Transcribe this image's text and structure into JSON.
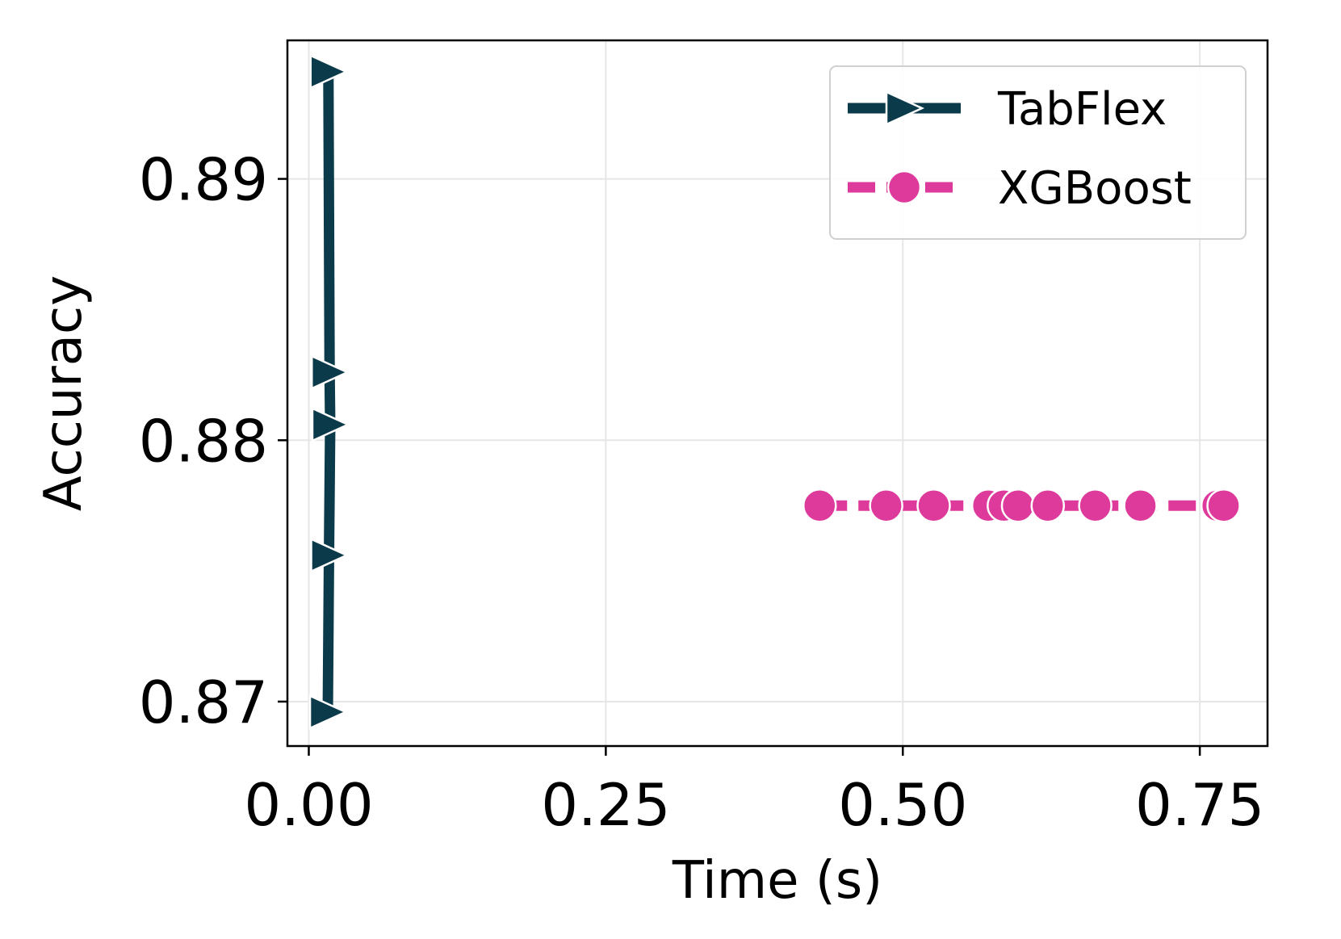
{
  "chart_data": {
    "type": "line",
    "xlabel": "Time (s)",
    "ylabel": "Accuracy",
    "xlim": [
      -0.018,
      0.807
    ],
    "ylim": [
      0.8683,
      0.8953
    ],
    "xticks": [
      0.0,
      0.25,
      0.5,
      0.75
    ],
    "xtick_labels": [
      "0.00",
      "0.25",
      "0.50",
      "0.75"
    ],
    "yticks": [
      0.87,
      0.88,
      0.89
    ],
    "ytick_labels": [
      "0.87",
      "0.88",
      "0.89"
    ],
    "grid": true,
    "legend_position": "top-right",
    "series": [
      {
        "name": "TabFlex",
        "color": "#0b3a4a",
        "marker": "triangle-right",
        "linestyle": "solid",
        "x": [
          0.0165,
          0.0175,
          0.018,
          0.017,
          0.016
        ],
        "y": [
          0.8941,
          0.8826,
          0.8806,
          0.8756,
          0.8696
        ]
      },
      {
        "name": "XGBoost",
        "color": "#de3a9b",
        "marker": "circle",
        "linestyle": "dashed",
        "x": [
          0.43,
          0.486,
          0.526,
          0.572,
          0.585,
          0.597,
          0.622,
          0.662,
          0.7,
          0.765,
          0.77
        ],
        "y": [
          0.8775,
          0.8775,
          0.8775,
          0.8775,
          0.8775,
          0.8775,
          0.8775,
          0.8775,
          0.8775,
          0.8775,
          0.8775
        ]
      }
    ]
  }
}
